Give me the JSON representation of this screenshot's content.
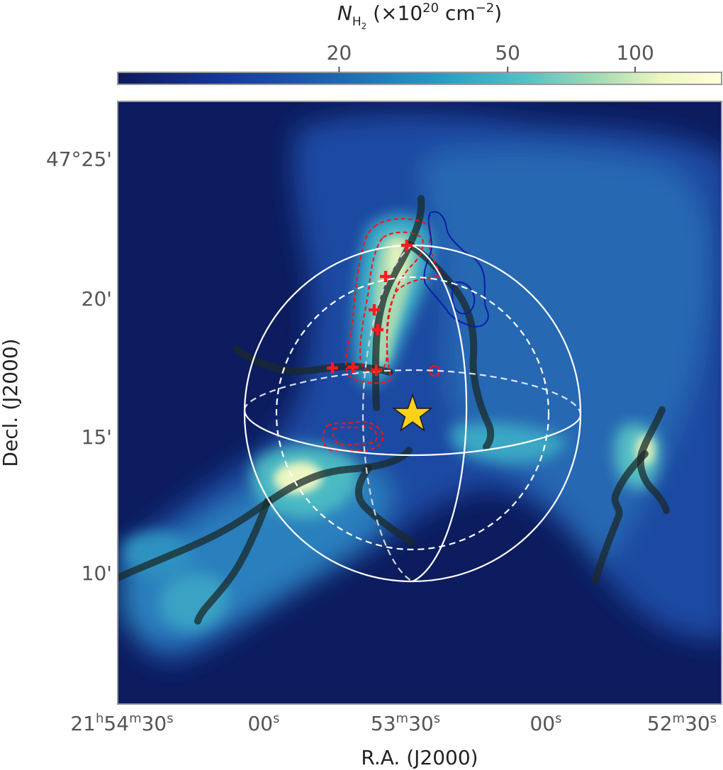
{
  "chart_data": {
    "type": "heatmap",
    "title": "",
    "colorbar": {
      "label_symbol": "N",
      "label_subscript": "H",
      "label_subsubscript": "2",
      "label_units_prefix": "(×10",
      "label_units_exp": "20",
      "label_units_mid": " cm",
      "label_units_exp2": "−2",
      "label_units_suffix": ")",
      "scale": "log",
      "range": [
        6,
        160
      ],
      "ticks": [
        {
          "value": 20,
          "label": "20"
        },
        {
          "value": 50,
          "label": "50"
        },
        {
          "value": 100,
          "label": "100"
        }
      ],
      "colormap": [
        "#0d1a5c",
        "#17399a",
        "#1f6cb0",
        "#2b9fc6",
        "#58c1c3",
        "#a7dcb2",
        "#ecf6c2",
        "#fffed9"
      ]
    },
    "xaxis": {
      "label": "R.A. (J2000)",
      "ticks": [
        {
          "h": "21",
          "m": "54",
          "s": "30",
          "value": "21h54m30s"
        },
        {
          "h": "",
          "m": "",
          "s": "00",
          "value": "21h54m00s"
        },
        {
          "h": "",
          "m": "53",
          "s": "30",
          "value": "21h53m30s"
        },
        {
          "h": "",
          "m": "",
          "s": "00",
          "value": "21h53m00s"
        },
        {
          "h": "",
          "m": "52",
          "s": "30",
          "value": "21h52m30s"
        }
      ]
    },
    "yaxis": {
      "label": "Decl. (J2000)",
      "ticks": [
        {
          "label": "47°25'",
          "value": "47°25'"
        },
        {
          "label": "20'",
          "value": "47°20'"
        },
        {
          "label": "15'",
          "value": "47°15'"
        },
        {
          "label": "10'",
          "value": "47°10'"
        }
      ]
    },
    "overlays": {
      "filaments": "dark skeleton filaments",
      "red_contours": "dashed red contours",
      "blue_contours": "solid blue contours",
      "cores": "red plus markers",
      "star": "yellow star marker",
      "shell": "white sphere wireframe"
    },
    "colors": {
      "filament": "#1b2a2a",
      "red_markers": "#ff1010",
      "blue_contour": "#0a1ea8",
      "star_fill": "#ffd21a",
      "sphere": "#ffffff"
    }
  }
}
